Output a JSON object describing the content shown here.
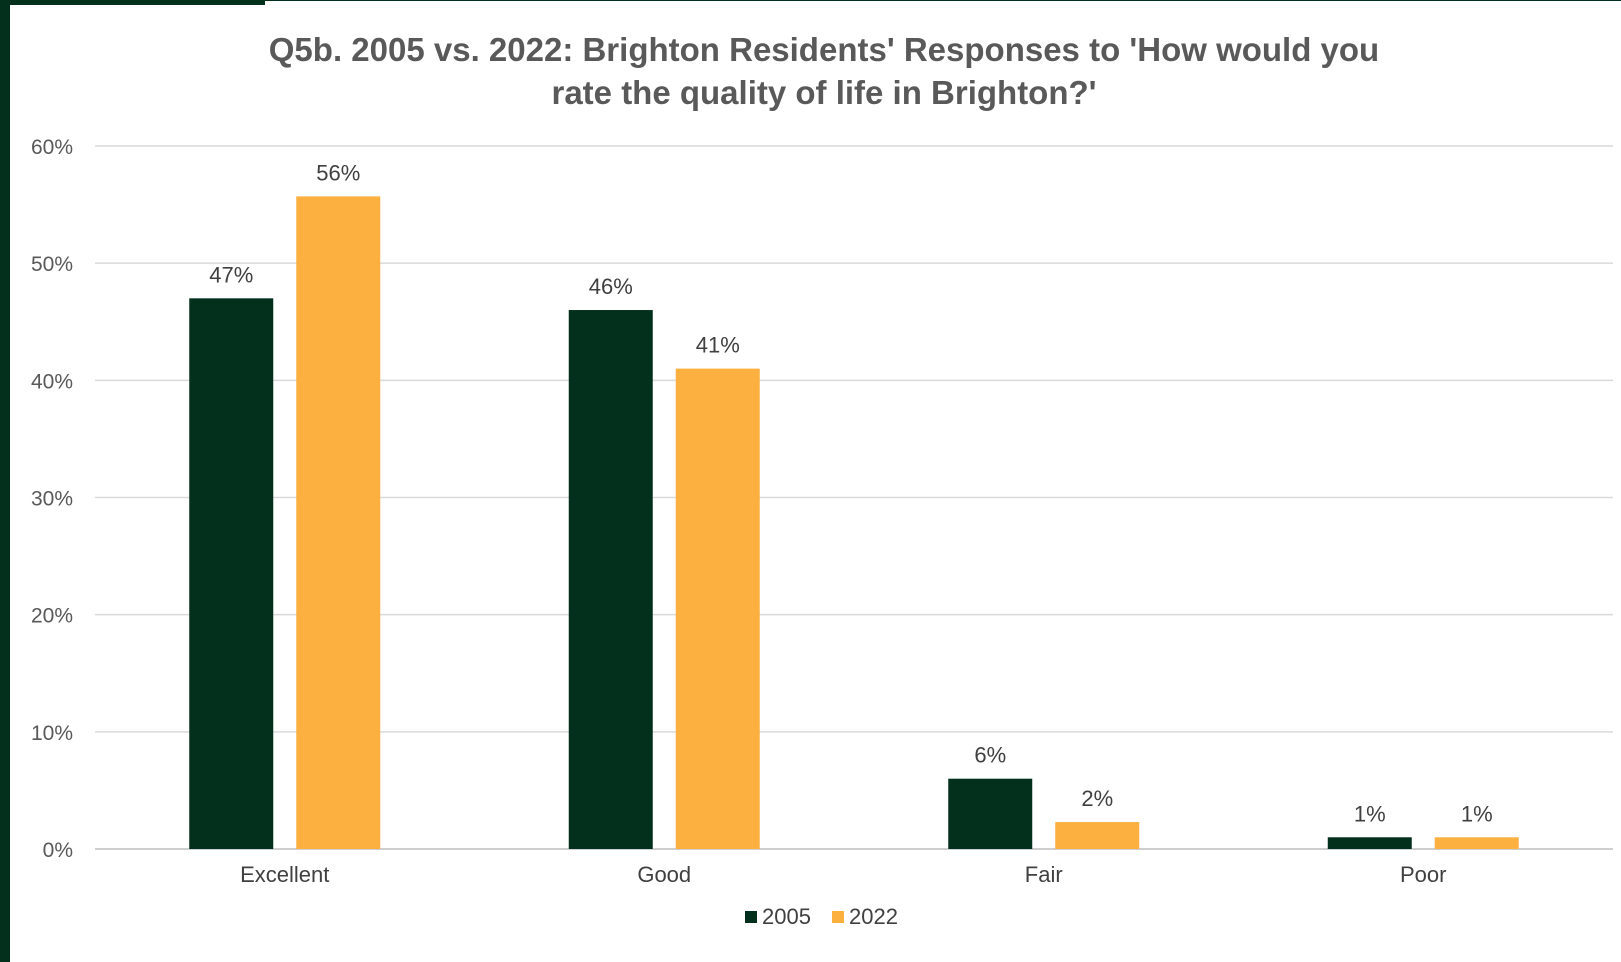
{
  "chart_data": {
    "type": "bar",
    "title_line1": "Q5b. 2005 vs. 2022: Brighton Residents' Responses to 'How would you",
    "title_line2": "rate the quality of life in Brighton?'",
    "categories": [
      "Excellent",
      "Good",
      "Fair",
      "Poor"
    ],
    "series": [
      {
        "name": "2005",
        "values": [
          47,
          46,
          6,
          1
        ],
        "labels": [
          "47%",
          "46%",
          "6%",
          "1%"
        ],
        "color": "#03301c"
      },
      {
        "name": "2022",
        "values": [
          55.7,
          41,
          2.3,
          1
        ],
        "labels": [
          "56%",
          "41%",
          "2%",
          "1%"
        ],
        "color": "#fbb040"
      }
    ],
    "yticks": [
      "0%",
      "10%",
      "20%",
      "30%",
      "40%",
      "50%",
      "60%"
    ],
    "ylim": [
      0,
      60
    ],
    "grid": true,
    "legend_position": "bottom"
  }
}
